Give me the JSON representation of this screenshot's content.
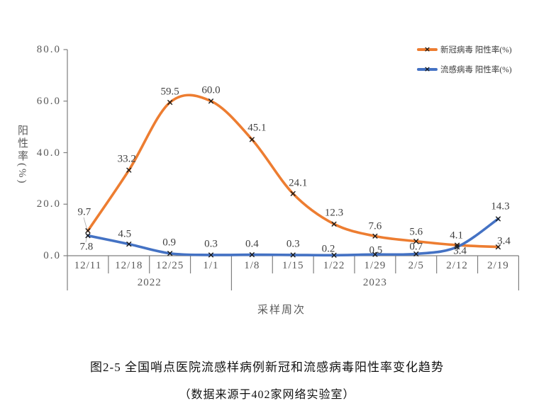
{
  "legend": {
    "items": [
      {
        "label": "新冠病毒 阳性率(%)",
        "color": "#ED7D31",
        "marker": "x"
      },
      {
        "label": "流感病毒 阳性率(%)",
        "color": "#4472C4",
        "marker": "x"
      }
    ]
  },
  "chart_data": {
    "type": "line",
    "smoothed": true,
    "marker": "x",
    "grid": false,
    "legend_position": "top-right",
    "xlabel": "采样周次",
    "ylabel": "阳性率(%)",
    "ylim": [
      0,
      80
    ],
    "y_ticks": [
      "80.0",
      "60.0",
      "40.0",
      "20.0",
      "0.0"
    ],
    "categories": [
      "12/11",
      "12/18",
      "12/25",
      "1/1",
      "1/8",
      "1/15",
      "1/22",
      "1/29",
      "2/5",
      "2/12",
      "2/19"
    ],
    "year_groups": [
      {
        "label": "2022",
        "start_index": 0,
        "end_index": 3
      },
      {
        "label": "2023",
        "start_index": 4,
        "end_index": 10
      }
    ],
    "series": [
      {
        "name": "新冠病毒 阳性率(%)",
        "color": "#ED7D31",
        "values": [
          9.7,
          33.2,
          59.5,
          60.0,
          45.1,
          24.1,
          12.3,
          7.6,
          5.6,
          4.1,
          3.4
        ]
      },
      {
        "name": "流感病毒 阳性率(%)",
        "color": "#4472C4",
        "values": [
          7.8,
          4.5,
          0.9,
          0.3,
          0.4,
          0.3,
          0.2,
          0.5,
          0.7,
          3.4,
          14.3
        ]
      }
    ]
  },
  "caption": {
    "title": "图2-5 全国哨点医院流感样病例新冠和流感病毒阳性率变化趋势",
    "source": "（数据来源于402家网络实验室）"
  }
}
